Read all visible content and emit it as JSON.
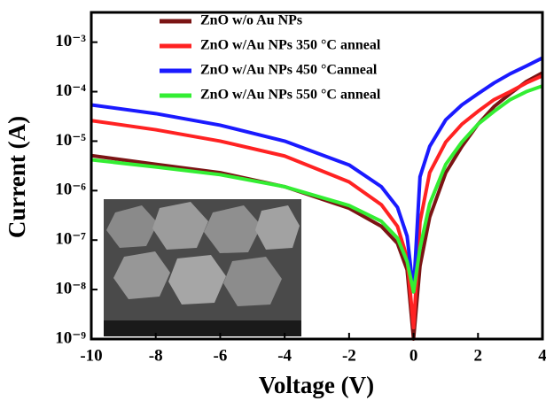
{
  "chart_data": {
    "type": "line",
    "xlabel": "Voltage (V)",
    "ylabel": "Current (A)",
    "x": [
      -10,
      -8,
      -6,
      -4,
      -2,
      -1,
      -0.5,
      -0.2,
      0,
      0.2,
      0.5,
      1,
      1.5,
      2,
      2.5,
      3,
      3.5,
      4
    ],
    "series": [
      {
        "name": "ZnO w/o Au NPs",
        "color": "#7b1414",
        "values": [
          5.1e-06,
          3.4e-06,
          2.3e-06,
          1.2e-06,
          4.4e-07,
          1.9e-07,
          8.6e-08,
          2.5e-08,
          1e-09,
          3e-08,
          2.9e-07,
          2.3e-06,
          7.8e-06,
          2.2e-05,
          5e-05,
          9.1e-05,
          0.00016,
          0.00024
        ]
      },
      {
        "name": "ZnO w/Au NPs 350 °C anneal",
        "color": "#ff2222",
        "values": [
          2.6e-05,
          1.7e-05,
          1e-05,
          5e-06,
          1.5e-06,
          5.2e-07,
          1.9e-07,
          4.4e-08,
          1.7e-09,
          2.3e-07,
          2.3e-06,
          9.6e-06,
          2.2e-05,
          4e-05,
          6.9e-05,
          0.0001,
          0.00015,
          0.00021
        ]
      },
      {
        "name": "ZnO w/Au NPs 450  °Canneal",
        "color": "#1a1aff",
        "values": [
          5.4e-05,
          3.6e-05,
          2.1e-05,
          1e-05,
          3.3e-06,
          1.2e-06,
          4.6e-07,
          1.2e-07,
          9e-09,
          1.9e-06,
          7.8e-06,
          2.7e-05,
          5.4e-05,
          9.1e-05,
          0.00015,
          0.00023,
          0.00033,
          0.00048
        ]
      },
      {
        "name": "ZnO w/Au NPs  550 °C anneal",
        "color": "#33ee33",
        "values": [
          4.2e-06,
          3e-06,
          2.1e-06,
          1.2e-06,
          5e-07,
          2.4e-07,
          1.1e-07,
          3.7e-08,
          9e-09,
          6.9e-08,
          5.4e-07,
          3.4e-06,
          9.6e-06,
          2.2e-05,
          4e-05,
          6.9e-05,
          0.0001,
          0.00013
        ]
      }
    ],
    "xlim": [
      -10,
      4
    ],
    "xticks": [
      -10,
      -8,
      -6,
      -4,
      -2,
      0,
      2,
      4
    ],
    "ylim": [
      1e-09,
      0.004
    ],
    "log_y": true,
    "yticks": [
      {
        "value": 1e-09,
        "label": "10⁻⁹"
      },
      {
        "value": 1e-08,
        "label": "10⁻⁸"
      },
      {
        "value": 1e-07,
        "label": "10⁻⁷"
      },
      {
        "value": 1e-06,
        "label": "10⁻⁶"
      },
      {
        "value": 1e-05,
        "label": "10⁻⁵"
      },
      {
        "value": 0.0001,
        "label": "10⁻⁴"
      },
      {
        "value": 0.001,
        "label": "10⁻³"
      }
    ],
    "grid": false
  }
}
